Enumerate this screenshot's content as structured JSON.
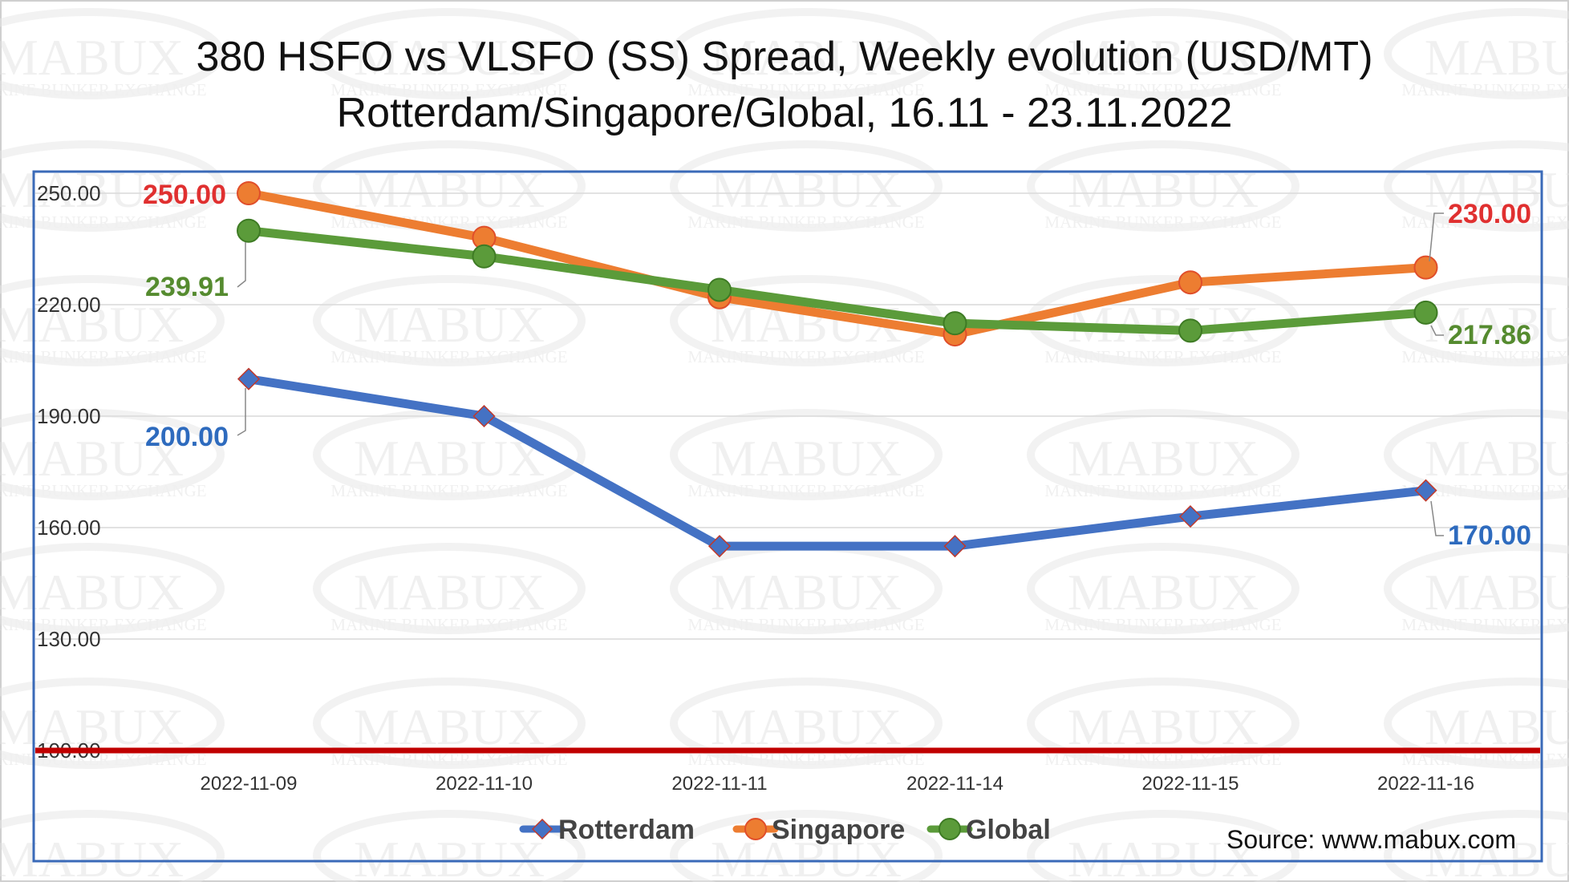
{
  "colors": {
    "rotterdam": "#4472C4",
    "singapore": "#ED7D31",
    "global": "#5B9B3A",
    "baseline": "#C00000",
    "frame": "#3A6AB8",
    "label_red": "#E03030",
    "label_green": "#558B2F",
    "label_blue": "#2E6BBE"
  },
  "watermark": {
    "brand": "MABUX",
    "tagline": "MARINE BUNKER EXCHANGE"
  },
  "source": "Source: www.mabux.com",
  "chart_data": {
    "type": "line",
    "title": "380 HSFO vs VLSFO (SS) Spread, Weekly evolution (USD/MT)",
    "subtitle": "Rotterdam/Singapore/Global, 16.11 - 23.11.2022",
    "categories": [
      "2022-11-09",
      "2022-11-10",
      "2022-11-11",
      "2022-11-14",
      "2022-11-15",
      "2022-11-16"
    ],
    "ylim": [
      100,
      260
    ],
    "yticks": [
      "100.00",
      "130.00",
      "160.00",
      "190.00",
      "220.00",
      "250.00"
    ],
    "ytick_values": [
      100,
      130,
      160,
      190,
      220,
      250
    ],
    "grid": true,
    "legend_position": "bottom-center",
    "baseline_value": 100,
    "series": [
      {
        "name": "Rotterdam",
        "key": "rotterdam",
        "marker": "diamond",
        "values": [
          200,
          190,
          155,
          155,
          163,
          170
        ],
        "start_label": "200.00",
        "end_label": "170.00"
      },
      {
        "name": "Singapore",
        "key": "singapore",
        "marker": "circle",
        "values": [
          250,
          238,
          222,
          212,
          226,
          230
        ],
        "start_label": "250.00",
        "end_label": "230.00"
      },
      {
        "name": "Global",
        "key": "global",
        "marker": "circle",
        "values": [
          239.91,
          233,
          224,
          215,
          213,
          217.86
        ],
        "start_label": "239.91",
        "end_label": "217.86"
      }
    ]
  }
}
